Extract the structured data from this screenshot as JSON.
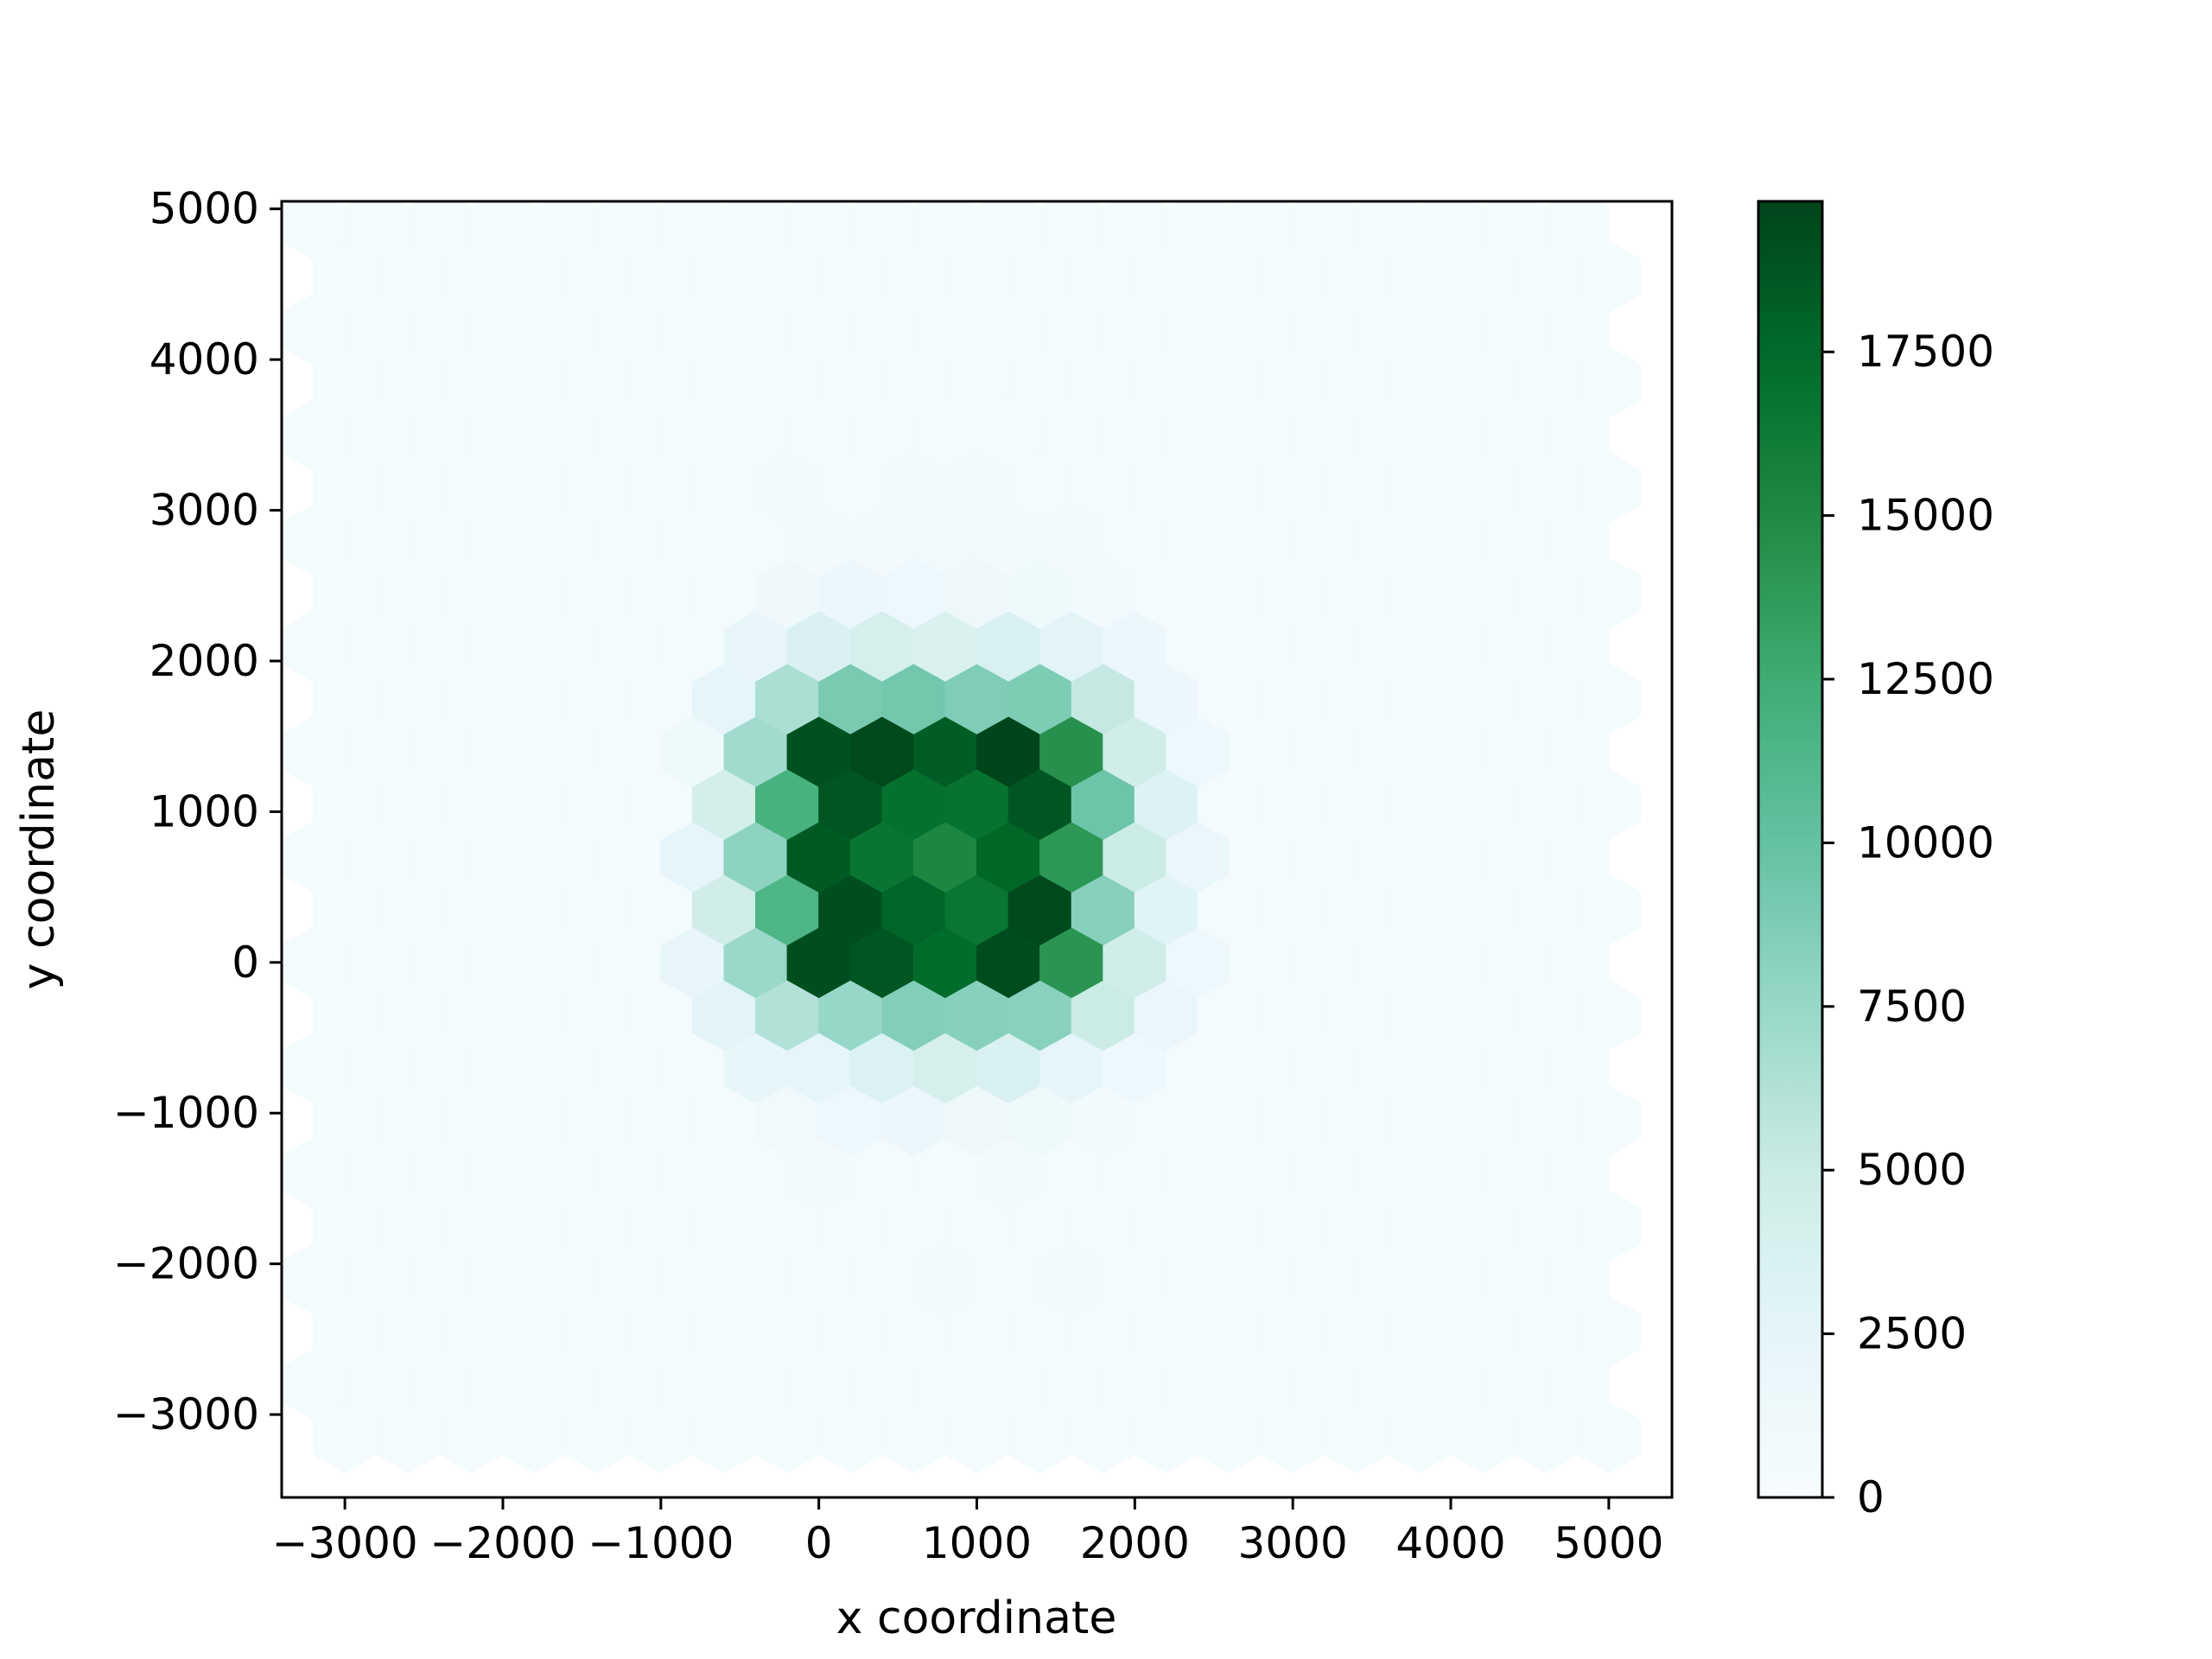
{
  "chart_data": {
    "type": "heatmap",
    "subtype": "hexbin",
    "title": "",
    "xlabel": "x coordinate",
    "ylabel": "y coordinate",
    "xlim": [
      -3400,
      5400
    ],
    "ylim": [
      -3550,
      5050
    ],
    "x_ticks": [
      -3000,
      -2000,
      -1000,
      0,
      1000,
      2000,
      3000,
      4000,
      5000
    ],
    "x_tick_labels": [
      "−3000",
      "−2000",
      "−1000",
      "0",
      "1000",
      "2000",
      "3000",
      "4000",
      "5000"
    ],
    "y_ticks": [
      -3000,
      -2000,
      -1000,
      0,
      1000,
      2000,
      3000,
      4000,
      5000
    ],
    "y_tick_labels": [
      "−3000",
      "−2000",
      "−1000",
      "0",
      "1000",
      "2000",
      "3000",
      "4000",
      "5000"
    ],
    "colorbar": {
      "colormap": "BuGn",
      "min": 0,
      "max": 19800,
      "ticks": [
        0,
        2500,
        5000,
        7500,
        10000,
        12500,
        15000,
        17500
      ],
      "tick_labels": [
        "0",
        "2500",
        "5000",
        "7500",
        "10000",
        "12500",
        "15000",
        "17500"
      ]
    },
    "background_value": 350,
    "hex_bins": [
      {
        "x": 0,
        "y": 1400,
        "count": 19000
      },
      {
        "x": 400,
        "y": 1400,
        "count": 19500
      },
      {
        "x": 800,
        "y": 1400,
        "count": 18300
      },
      {
        "x": 1200,
        "y": 1400,
        "count": 19800
      },
      {
        "x": 1600,
        "y": 1400,
        "count": 14500
      },
      {
        "x": 200,
        "y": 1050,
        "count": 18800
      },
      {
        "x": 600,
        "y": 1050,
        "count": 17000
      },
      {
        "x": 1000,
        "y": 1050,
        "count": 16800
      },
      {
        "x": 1400,
        "y": 1050,
        "count": 18700
      },
      {
        "x": 0,
        "y": 700,
        "count": 18500
      },
      {
        "x": 400,
        "y": 700,
        "count": 16700
      },
      {
        "x": 800,
        "y": 700,
        "count": 15300
      },
      {
        "x": 1200,
        "y": 700,
        "count": 17700
      },
      {
        "x": 1600,
        "y": 700,
        "count": 14000
      },
      {
        "x": 200,
        "y": 350,
        "count": 19200
      },
      {
        "x": 600,
        "y": 350,
        "count": 17800
      },
      {
        "x": 1000,
        "y": 350,
        "count": 16600
      },
      {
        "x": 1400,
        "y": 350,
        "count": 19500
      },
      {
        "x": 0,
        "y": 0,
        "count": 19200
      },
      {
        "x": 400,
        "y": 0,
        "count": 18700
      },
      {
        "x": 800,
        "y": 0,
        "count": 17300
      },
      {
        "x": 1200,
        "y": 0,
        "count": 19300
      },
      {
        "x": 1600,
        "y": 0,
        "count": 14200
      },
      {
        "x": -200,
        "y": 1750,
        "count": 6500
      },
      {
        "x": 200,
        "y": 1750,
        "count": 9000
      },
      {
        "x": 600,
        "y": 1750,
        "count": 9300
      },
      {
        "x": 1000,
        "y": 1750,
        "count": 8700
      },
      {
        "x": 1400,
        "y": 1750,
        "count": 8800
      },
      {
        "x": 1800,
        "y": 1750,
        "count": 5300
      },
      {
        "x": -400,
        "y": 1400,
        "count": 7000
      },
      {
        "x": 2000,
        "y": 1400,
        "count": 4600
      },
      {
        "x": -200,
        "y": 1050,
        "count": 11900
      },
      {
        "x": 1800,
        "y": 1050,
        "count": 9600
      },
      {
        "x": -400,
        "y": 700,
        "count": 8000
      },
      {
        "x": 2000,
        "y": 700,
        "count": 5000
      },
      {
        "x": -200,
        "y": 350,
        "count": 11500
      },
      {
        "x": 1800,
        "y": 350,
        "count": 8300
      },
      {
        "x": -400,
        "y": 0,
        "count": 7400
      },
      {
        "x": 2000,
        "y": 0,
        "count": 4600
      },
      {
        "x": -200,
        "y": -350,
        "count": 6200
      },
      {
        "x": 200,
        "y": -350,
        "count": 7500
      },
      {
        "x": 600,
        "y": -350,
        "count": 8500
      },
      {
        "x": 1000,
        "y": -350,
        "count": 8300
      },
      {
        "x": 1400,
        "y": -350,
        "count": 8200
      },
      {
        "x": 1800,
        "y": -350,
        "count": 5000
      },
      {
        "x": -400,
        "y": 2100,
        "count": 2000
      },
      {
        "x": 0,
        "y": 2100,
        "count": 3500
      },
      {
        "x": 400,
        "y": 2100,
        "count": 4200
      },
      {
        "x": 800,
        "y": 2100,
        "count": 3600
      },
      {
        "x": 1200,
        "y": 2100,
        "count": 3800
      },
      {
        "x": 1600,
        "y": 2100,
        "count": 2800
      },
      {
        "x": 2000,
        "y": 2100,
        "count": 1700
      },
      {
        "x": -600,
        "y": 1750,
        "count": 2300
      },
      {
        "x": 2200,
        "y": 1750,
        "count": 1600
      },
      {
        "x": -800,
        "y": 1400,
        "count": 1200
      },
      {
        "x": 2400,
        "y": 1400,
        "count": 1500
      },
      {
        "x": -600,
        "y": 1050,
        "count": 4300
      },
      {
        "x": 2200,
        "y": 1050,
        "count": 3300
      },
      {
        "x": -800,
        "y": 700,
        "count": 2300
      },
      {
        "x": 2400,
        "y": 700,
        "count": 1800
      },
      {
        "x": -600,
        "y": 350,
        "count": 4600
      },
      {
        "x": 2200,
        "y": 350,
        "count": 3000
      },
      {
        "x": -800,
        "y": 0,
        "count": 2000
      },
      {
        "x": 2400,
        "y": 0,
        "count": 1500
      },
      {
        "x": -600,
        "y": -350,
        "count": 2800
      },
      {
        "x": 2200,
        "y": -350,
        "count": 1800
      },
      {
        "x": -400,
        "y": -700,
        "count": 2200
      },
      {
        "x": 0,
        "y": -700,
        "count": 2500
      },
      {
        "x": 400,
        "y": -700,
        "count": 3400
      },
      {
        "x": 800,
        "y": -700,
        "count": 4000
      },
      {
        "x": 1200,
        "y": -700,
        "count": 3700
      },
      {
        "x": 1600,
        "y": -700,
        "count": 2500
      },
      {
        "x": 2000,
        "y": -700,
        "count": 1500
      },
      {
        "x": -200,
        "y": 2450,
        "count": 1100
      },
      {
        "x": 200,
        "y": 2450,
        "count": 1700
      },
      {
        "x": 600,
        "y": 2450,
        "count": 1500
      },
      {
        "x": 1000,
        "y": 2450,
        "count": 1300
      },
      {
        "x": 1400,
        "y": 2450,
        "count": 1200
      },
      {
        "x": 1800,
        "y": 2450,
        "count": 800
      },
      {
        "x": -200,
        "y": -1050,
        "count": 1000
      },
      {
        "x": 200,
        "y": -1050,
        "count": 1500
      },
      {
        "x": 600,
        "y": -1050,
        "count": 1600
      },
      {
        "x": 1000,
        "y": -1050,
        "count": 1300
      },
      {
        "x": 1400,
        "y": -1050,
        "count": 1200
      },
      {
        "x": 1800,
        "y": -1050,
        "count": 800
      },
      {
        "x": 0,
        "y": 2800,
        "count": 850
      },
      {
        "x": 400,
        "y": 2800,
        "count": 700
      },
      {
        "x": 800,
        "y": 2800,
        "count": 900
      },
      {
        "x": 1200,
        "y": 2800,
        "count": 800
      },
      {
        "x": 1600,
        "y": 2800,
        "count": 650
      },
      {
        "x": -200,
        "y": 3150,
        "count": 750
      },
      {
        "x": 600,
        "y": 3150,
        "count": 750
      },
      {
        "x": 1000,
        "y": 3150,
        "count": 700
      },
      {
        "x": 0,
        "y": -1400,
        "count": 600
      },
      {
        "x": 1200,
        "y": -1400,
        "count": 600
      },
      {
        "x": 800,
        "y": -2100,
        "count": 600
      },
      {
        "x": 1600,
        "y": -2100,
        "count": 550
      }
    ]
  }
}
